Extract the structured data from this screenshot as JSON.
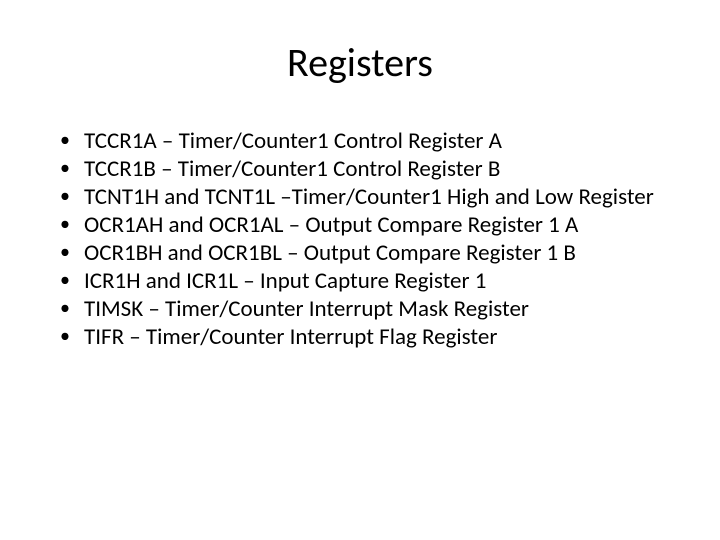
{
  "slide": {
    "title": "Registers",
    "title_fontsize": 40,
    "body_fontsize": 23,
    "background_color": "#ffffff",
    "text_color": "#000000",
    "bullets": [
      "TCCR1A – Timer/Counter1 Control Register A",
      "TCCR1B – Timer/Counter1 Control Register B",
      "TCNT1H and TCNT1L –Timer/Counter1 High and Low Register",
      "OCR1AH and OCR1AL – Output Compare Register 1 A",
      "OCR1BH and OCR1BL – Output Compare Register 1 B",
      "ICR1H and ICR1L – Input Capture Register 1",
      "TIMSK – Timer/Counter Interrupt Mask Register",
      "TIFR – Timer/Counter Interrupt Flag Register"
    ]
  }
}
